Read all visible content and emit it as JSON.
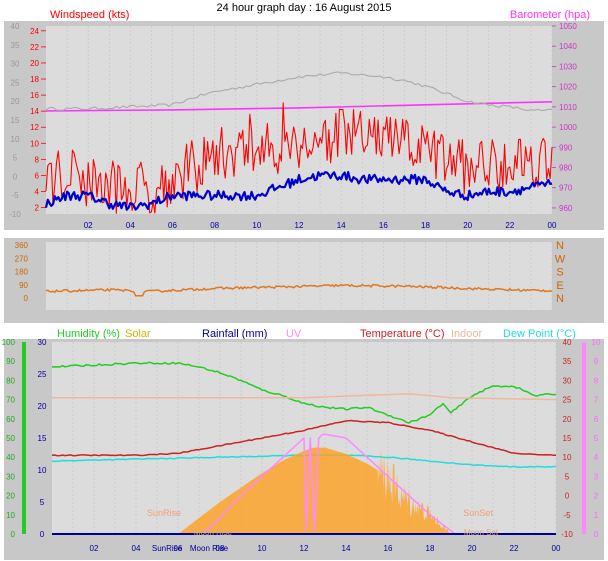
{
  "title": "24 hour graph day : 16 August 2015",
  "time_ticks": [
    "02",
    "04",
    "06",
    "08",
    "10",
    "12",
    "14",
    "16",
    "18",
    "20",
    "22",
    "00"
  ],
  "colors": {
    "wind": "#ff0000",
    "gust": "#ff0000",
    "avg_wind": "#0000cc",
    "barometer": "#ff33ff",
    "baro_bg": "#aaaaaa",
    "wind_dir": "#e07820",
    "humidity": "#22cc22",
    "solar": "#ffa020",
    "rainfall": "#000099",
    "uv": "#ff88ff",
    "temperature": "#cc2222",
    "indoor": "#f0b89a",
    "dew_point": "#22dddd",
    "panel_bg": "#dcdcdc",
    "frame": "#c8c8c8"
  },
  "chart_data": [
    {
      "type": "line",
      "labels": {
        "windspeed": "Windspeed (kts)",
        "barometer": "Barometer (hpa)"
      },
      "left_axis_ticks": [
        "-10",
        "-5",
        "0",
        "5",
        "10",
        "15",
        "20",
        "25",
        "30",
        "35",
        "40"
      ],
      "wind_axis_ticks": [
        "2",
        "4",
        "6",
        "8",
        "10",
        "12",
        "14",
        "16",
        "18",
        "20",
        "22",
        "24"
      ],
      "baro_axis_ticks": [
        "960",
        "970",
        "980",
        "990",
        "1000",
        "1010",
        "1020",
        "1030",
        "1040",
        "1050"
      ],
      "xlim": [
        0,
        24
      ],
      "series": [
        {
          "key": "barometer",
          "y_axis": "baro",
          "x": [
            0,
            6,
            12,
            18,
            24
          ],
          "y": [
            1008,
            1008.5,
            1009.5,
            1011,
            1012.5
          ]
        },
        {
          "key": "baro_bg",
          "y_axis": "left",
          "x": [
            0,
            2,
            4,
            6,
            7,
            8,
            9,
            10,
            11,
            12,
            13,
            14,
            15,
            16,
            17,
            18,
            19,
            20,
            21,
            22,
            23,
            24
          ],
          "y": [
            18,
            18,
            18.5,
            19,
            21,
            22.5,
            23.5,
            24.5,
            25.5,
            26.5,
            27,
            27.5,
            27,
            26.5,
            25.5,
            24,
            22,
            20,
            19,
            18.5,
            17.5,
            17.5
          ]
        },
        {
          "key": "wind",
          "y_axis": "wind",
          "noise": 3.5,
          "x": [
            0,
            1,
            2,
            3,
            4,
            5,
            6,
            7,
            8,
            9,
            10,
            11,
            12,
            13,
            14,
            15,
            16,
            17,
            18,
            19,
            20,
            21,
            22,
            23,
            24
          ],
          "y": [
            6,
            6,
            5.5,
            4.5,
            4.5,
            4.5,
            5.5,
            7,
            8.5,
            9,
            9,
            9.5,
            10,
            10.5,
            11,
            11,
            10.5,
            10,
            9,
            8,
            7,
            7.5,
            8,
            8,
            8
          ]
        },
        {
          "key": "avg_wind",
          "y_axis": "wind",
          "noise": 0.6,
          "x": [
            0,
            1,
            2,
            3,
            4,
            5,
            6,
            7,
            8,
            9,
            10,
            11,
            12,
            13,
            14,
            15,
            16,
            17,
            18,
            19,
            20,
            21,
            22,
            23,
            24
          ],
          "y": [
            2.5,
            3.5,
            3.5,
            2.5,
            2,
            2.5,
            3.5,
            3.5,
            3.5,
            3.5,
            3.5,
            4.5,
            5.5,
            6,
            6,
            5.5,
            5.5,
            5.5,
            5.5,
            4,
            3.5,
            4,
            4,
            4.5,
            5
          ]
        }
      ]
    },
    {
      "type": "line",
      "left_axis_ticks": [
        "0",
        "90",
        "180",
        "270",
        "360"
      ],
      "compass_ticks": [
        "N",
        "E",
        "S",
        "W",
        "N"
      ],
      "xlim": [
        0,
        24
      ],
      "series": [
        {
          "key": "wind_dir",
          "noise": 8,
          "x": [
            0,
            3,
            5,
            8,
            11,
            14,
            17,
            20,
            22,
            24
          ],
          "y": [
            45,
            55,
            45,
            65,
            75,
            85,
            80,
            65,
            55,
            50
          ]
        }
      ]
    },
    {
      "type": "area",
      "labels": {
        "humidity": "Humidity (%)",
        "solar": "Solar",
        "rainfall": "Rainfall (mm)",
        "uv": "UV",
        "temperature": "Temperature (°C)",
        "indoor": "Indoor",
        "dew_point": "Dew Point (°C)"
      },
      "humidity_ticks": [
        "0",
        "10",
        "20",
        "30",
        "40",
        "50",
        "60",
        "70",
        "80",
        "90",
        "100"
      ],
      "rain_ticks": [
        "0",
        "5",
        "10",
        "15",
        "20",
        "25",
        "30"
      ],
      "temp_ticks": [
        "-10",
        "-5",
        "0",
        "5",
        "10",
        "15",
        "20",
        "25",
        "30",
        "35",
        "40"
      ],
      "uv_ticks": [
        "0",
        "1",
        "2",
        "3",
        "4",
        "5",
        "6",
        "7",
        "8",
        "9",
        "10"
      ],
      "annotations": [
        "SunRise",
        "SunSet",
        "Moon Rise",
        "Moon Set"
      ],
      "xlim": [
        0,
        24
      ],
      "series": [
        {
          "key": "humidity",
          "y_axis": "humidity",
          "x": [
            0,
            2,
            4,
            6,
            7,
            8,
            9,
            10,
            11,
            12,
            13,
            14,
            15,
            16,
            17,
            18,
            18.6,
            19,
            20,
            21,
            22,
            23,
            24
          ],
          "y": [
            87,
            88,
            89,
            89,
            87,
            84,
            80,
            75,
            72,
            68,
            66,
            65,
            66,
            62,
            58,
            62,
            68,
            63,
            72,
            77,
            77,
            72,
            73
          ]
        },
        {
          "key": "indoor",
          "y_axis": "temp",
          "x": [
            0,
            6,
            12,
            17,
            19,
            24
          ],
          "y": [
            25.5,
            25.5,
            25.5,
            26.5,
            25.5,
            25
          ]
        },
        {
          "key": "temperature",
          "y_axis": "temp",
          "x": [
            0,
            4,
            6,
            8,
            10,
            12,
            14,
            16,
            18,
            20,
            22,
            24
          ],
          "y": [
            10.5,
            10.5,
            11,
            13,
            15,
            17,
            19.5,
            19,
            17,
            14,
            11,
            10.5
          ]
        },
        {
          "key": "dew_point",
          "y_axis": "temp",
          "x": [
            0,
            4,
            8,
            12,
            14,
            16,
            18,
            20,
            22,
            24
          ],
          "y": [
            9,
            9.5,
            10,
            10.5,
            10.5,
            10,
            9,
            8,
            7.5,
            7.5
          ]
        },
        {
          "key": "solar",
          "y_axis": "rain",
          "x": [
            6,
            8,
            10,
            11,
            12,
            12.5,
            13,
            14,
            15,
            16,
            16.5,
            17,
            17.5,
            18,
            18.5,
            19
          ],
          "y": [
            0,
            5,
            9.5,
            11.5,
            13,
            13.5,
            13.5,
            12.5,
            11,
            9,
            6.5,
            5,
            4,
            3,
            1.5,
            0
          ]
        },
        {
          "key": "uv",
          "y_axis": "uv",
          "x": [
            7.2,
            9,
            11,
            12,
            12.1,
            12.3,
            12.5,
            12.7,
            12.9,
            13,
            14,
            16,
            18,
            19.2
          ],
          "y": [
            0,
            2,
            4,
            5,
            0.2,
            5,
            0.2,
            5,
            5.2,
            5.2,
            5,
            3,
            1,
            0
          ]
        },
        {
          "key": "rainfall",
          "y_axis": "rain",
          "x": [
            0,
            24
          ],
          "y": [
            0,
            0
          ]
        }
      ]
    }
  ]
}
